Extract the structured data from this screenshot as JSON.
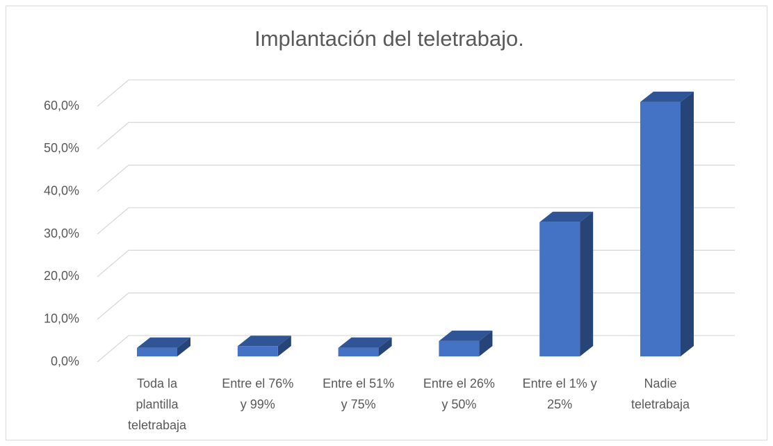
{
  "chart_data": {
    "type": "bar3d",
    "title": "Implantación del teletrabajo.",
    "categories": [
      "Toda la plantilla teletrabaja",
      "Entre el 76% y 99%",
      "Entre el 51% y 75%",
      "Entre el 26% y 50%",
      "Entre el 1% y 25%",
      "Nadie teletrabaja"
    ],
    "values": [
      2.0,
      2.4,
      2.0,
      3.6,
      31.5,
      59.7
    ],
    "color": "#4472c4",
    "ylim": [
      0,
      60
    ],
    "yticks": [
      {
        "value": 0,
        "label": "0,0%"
      },
      {
        "value": 10,
        "label": "10,0%"
      },
      {
        "value": 20,
        "label": "20,0%"
      },
      {
        "value": 30,
        "label": "30,0%"
      },
      {
        "value": 40,
        "label": "40,0%"
      },
      {
        "value": 50,
        "label": "50,0%"
      },
      {
        "value": 60,
        "label": "60,0%"
      }
    ],
    "grid": true
  }
}
